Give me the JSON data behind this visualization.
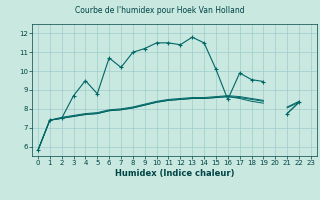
{
  "title": "Courbe de l'humidex pour Hoek Van Holland",
  "xlabel": "Humidex (Indice chaleur)",
  "background_color": "#c8e8e0",
  "grid_color": "#a0cccc",
  "line_color": "#006666",
  "text_color": "#004444",
  "xlim": [
    -0.5,
    23.5
  ],
  "ylim": [
    5.5,
    12.5
  ],
  "xticks": [
    0,
    1,
    2,
    3,
    4,
    5,
    6,
    7,
    8,
    9,
    10,
    11,
    12,
    13,
    14,
    15,
    16,
    17,
    18,
    19,
    20,
    21,
    22,
    23
  ],
  "yticks": [
    6,
    7,
    8,
    9,
    10,
    11,
    12
  ],
  "series": [
    [
      5.8,
      7.4,
      7.5,
      8.7,
      9.5,
      8.8,
      10.7,
      10.2,
      11.0,
      11.2,
      11.5,
      11.5,
      11.4,
      11.8,
      11.5,
      10.1,
      8.5,
      9.9,
      9.55,
      9.45,
      null,
      7.75,
      8.35
    ],
    [
      5.8,
      7.4,
      7.5,
      7.6,
      7.7,
      7.75,
      7.9,
      7.95,
      8.05,
      8.2,
      8.35,
      8.45,
      8.5,
      8.55,
      8.55,
      8.6,
      8.65,
      8.6,
      8.5,
      8.4,
      null,
      8.05,
      8.35
    ],
    [
      5.8,
      7.4,
      7.5,
      7.6,
      7.7,
      7.75,
      7.9,
      7.95,
      8.05,
      8.2,
      8.35,
      8.45,
      8.5,
      8.55,
      8.55,
      8.6,
      8.65,
      8.55,
      8.4,
      8.3,
      null,
      7.75,
      8.35
    ],
    [
      5.8,
      7.4,
      7.55,
      7.65,
      7.75,
      7.8,
      7.95,
      8.0,
      8.1,
      8.25,
      8.4,
      8.5,
      8.55,
      8.6,
      8.6,
      8.65,
      8.7,
      8.65,
      8.55,
      8.45,
      null,
      8.1,
      8.4
    ]
  ],
  "line_styles": [
    {
      "lw": 0.8,
      "marker": "+",
      "ms": 3.5,
      "mew": 0.8
    },
    {
      "lw": 0.7,
      "marker": null,
      "ms": 0,
      "mew": 0
    },
    {
      "lw": 0.7,
      "marker": null,
      "ms": 0,
      "mew": 0
    },
    {
      "lw": 0.7,
      "marker": null,
      "ms": 0,
      "mew": 0
    }
  ]
}
